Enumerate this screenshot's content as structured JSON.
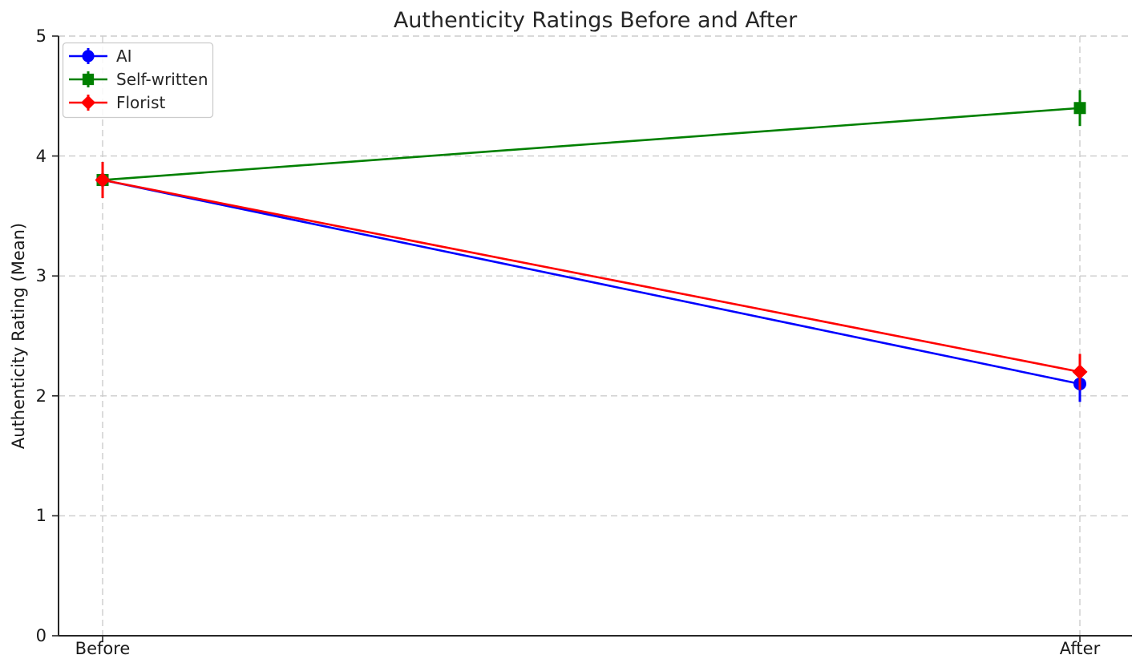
{
  "figure": {
    "background": "#ffffff"
  },
  "chart_data": {
    "type": "line",
    "title": "Authenticity Ratings Before and After",
    "xlabel": "",
    "ylabel": "Authenticity Rating (Mean)",
    "categories": [
      "Before",
      "After"
    ],
    "series": [
      {
        "name": "AI",
        "values": [
          3.8,
          2.1
        ],
        "yerr": [
          0.15,
          0.15
        ],
        "color": "#0000ff",
        "marker": "circle"
      },
      {
        "name": "Self-written",
        "values": [
          3.8,
          4.4
        ],
        "yerr": [
          0.15,
          0.15
        ],
        "color": "#008000",
        "marker": "square"
      },
      {
        "name": "Florist",
        "values": [
          3.8,
          2.2
        ],
        "yerr": [
          0.15,
          0.15
        ],
        "color": "#ff0000",
        "marker": "diamond"
      }
    ],
    "ylim": [
      0,
      5
    ],
    "yticks": [
      "0",
      "1",
      "2",
      "3",
      "4",
      "5"
    ],
    "grid": true,
    "grid_style": "dashed",
    "legend_position": "upper-left",
    "axis_color": "#262626",
    "grid_color": "#cccccc",
    "text_color": "#1a1a1a"
  }
}
